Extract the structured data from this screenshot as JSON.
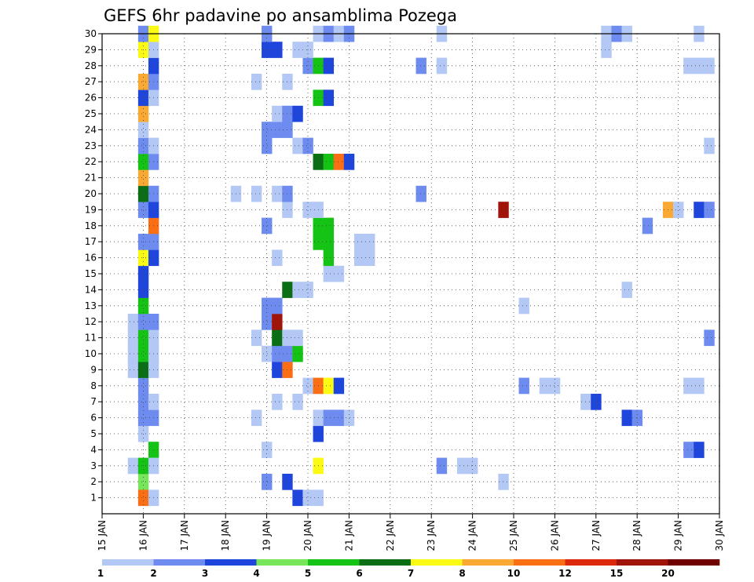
{
  "chart_data": {
    "type": "heatmap",
    "title": "GEFS 6hr padavine po ansamblima Pozega",
    "xlabel": "",
    "ylabel": "",
    "x_tick_labels": [
      "15 JAN",
      "16 JAN",
      "17 JAN",
      "18 JAN",
      "19 JAN",
      "20 JAN",
      "21 JAN",
      "22 JAN",
      "23 JAN",
      "24 JAN",
      "25 JAN",
      "26 JAN",
      "27 JAN",
      "28 JAN",
      "29 JAN",
      "30 JAN"
    ],
    "x_range": [
      "15 JAN",
      "30 JAN"
    ],
    "x_step_hours": 6,
    "y_range": [
      0,
      30
    ],
    "y_tick_labels": [
      1,
      2,
      3,
      4,
      5,
      6,
      7,
      8,
      9,
      10,
      11,
      12,
      13,
      14,
      15,
      16,
      17,
      18,
      19,
      20,
      21,
      22,
      23,
      24,
      25,
      26,
      27,
      28,
      29,
      30
    ],
    "grid": true,
    "color_levels": [
      1,
      2,
      3,
      4,
      5,
      6,
      7,
      8,
      10,
      12,
      15,
      20
    ],
    "color_bins": [
      "#b4c8f5",
      "#6e8cf0",
      "#1e46dc",
      "#78e65a",
      "#14c314",
      "#0a6e14",
      "#fafa14",
      "#faaa32",
      "#fa6e14",
      "#dc280a",
      "#a0140a",
      "#6e0000"
    ],
    "cells": [
      [
        16.0,
        2,
        4
      ],
      [
        16.0,
        1,
        10
      ],
      [
        16.25,
        1,
        1
      ],
      [
        16.25,
        4,
        5
      ],
      [
        15.75,
        3,
        1
      ],
      [
        16.0,
        3,
        5
      ],
      [
        16.25,
        3,
        1
      ],
      [
        16.0,
        5,
        1
      ],
      [
        16.0,
        6,
        2
      ],
      [
        16.25,
        6,
        2
      ],
      [
        16.0,
        7,
        2
      ],
      [
        16.25,
        7,
        1
      ],
      [
        16.0,
        8,
        2
      ],
      [
        15.75,
        9,
        1
      ],
      [
        16.0,
        9,
        6
      ],
      [
        16.25,
        9,
        1
      ],
      [
        15.75,
        10,
        1
      ],
      [
        16.0,
        10,
        5
      ],
      [
        16.25,
        10,
        1
      ],
      [
        15.75,
        11,
        1
      ],
      [
        16.0,
        11,
        5
      ],
      [
        16.25,
        11,
        1
      ],
      [
        15.75,
        12,
        1
      ],
      [
        16.0,
        12,
        2
      ],
      [
        16.25,
        12,
        2
      ],
      [
        16.0,
        13,
        5
      ],
      [
        16.0,
        14,
        3
      ],
      [
        16.0,
        15,
        3
      ],
      [
        16.0,
        16,
        7
      ],
      [
        16.25,
        16,
        3
      ],
      [
        16.0,
        17,
        2
      ],
      [
        16.25,
        17,
        2
      ],
      [
        16.25,
        18,
        10
      ],
      [
        16.0,
        19,
        2
      ],
      [
        16.25,
        19,
        3
      ],
      [
        16.0,
        20,
        6
      ],
      [
        16.25,
        20,
        2
      ],
      [
        16.0,
        21,
        8
      ],
      [
        16.0,
        22,
        5
      ],
      [
        16.25,
        22,
        2
      ],
      [
        16.0,
        23,
        2
      ],
      [
        16.25,
        23,
        1
      ],
      [
        16.0,
        24,
        1
      ],
      [
        16.0,
        25,
        8
      ],
      [
        16.0,
        26,
        3
      ],
      [
        16.25,
        26,
        1
      ],
      [
        16.0,
        27,
        8
      ],
      [
        16.25,
        27,
        2
      ],
      [
        16.25,
        28,
        3
      ],
      [
        16.0,
        29,
        7
      ],
      [
        16.25,
        29,
        1
      ],
      [
        16.0,
        30,
        2
      ],
      [
        16.25,
        30,
        7
      ],
      [
        19.75,
        1,
        3
      ],
      [
        20.0,
        1,
        1
      ],
      [
        20.25,
        1,
        1
      ],
      [
        19.0,
        2,
        2
      ],
      [
        19.5,
        2,
        3
      ],
      [
        20.25,
        3,
        7
      ],
      [
        19.0,
        4,
        1
      ],
      [
        20.25,
        5,
        3
      ],
      [
        18.75,
        6,
        1
      ],
      [
        20.25,
        6,
        1
      ],
      [
        20.5,
        6,
        2
      ],
      [
        20.75,
        6,
        2
      ],
      [
        21.0,
        6,
        1
      ],
      [
        19.25,
        7,
        1
      ],
      [
        19.75,
        7,
        1
      ],
      [
        20.0,
        8,
        1
      ],
      [
        20.25,
        8,
        10
      ],
      [
        20.5,
        8,
        7
      ],
      [
        20.75,
        8,
        3
      ],
      [
        19.25,
        9,
        3
      ],
      [
        19.5,
        9,
        10
      ],
      [
        19.0,
        10,
        1
      ],
      [
        19.25,
        10,
        2
      ],
      [
        19.5,
        10,
        2
      ],
      [
        19.75,
        10,
        5
      ],
      [
        18.75,
        11,
        1
      ],
      [
        19.25,
        11,
        6
      ],
      [
        19.5,
        11,
        1
      ],
      [
        19.75,
        11,
        1
      ],
      [
        19.0,
        12,
        2
      ],
      [
        19.25,
        12,
        15
      ],
      [
        19.0,
        13,
        2
      ],
      [
        19.25,
        13,
        2
      ],
      [
        19.5,
        14,
        6
      ],
      [
        19.75,
        14,
        1
      ],
      [
        20.0,
        14,
        1
      ],
      [
        20.5,
        15,
        1
      ],
      [
        20.75,
        15,
        1
      ],
      [
        19.25,
        16,
        1
      ],
      [
        20.5,
        16,
        5
      ],
      [
        21.25,
        16,
        1
      ],
      [
        21.5,
        16,
        1
      ],
      [
        20.25,
        17,
        5
      ],
      [
        20.5,
        17,
        5
      ],
      [
        21.25,
        17,
        1
      ],
      [
        21.5,
        17,
        1
      ],
      [
        19.0,
        18,
        2
      ],
      [
        20.25,
        18,
        5
      ],
      [
        20.5,
        18,
        5
      ],
      [
        19.5,
        19,
        1
      ],
      [
        20.0,
        19,
        1
      ],
      [
        20.25,
        19,
        1
      ],
      [
        18.25,
        20,
        1
      ],
      [
        18.75,
        20,
        1
      ],
      [
        19.25,
        20,
        1
      ],
      [
        19.5,
        20,
        2
      ],
      [
        20.25,
        22,
        6
      ],
      [
        20.5,
        22,
        5
      ],
      [
        20.75,
        22,
        10
      ],
      [
        21.0,
        22,
        3
      ],
      [
        19.0,
        23,
        2
      ],
      [
        19.75,
        23,
        1
      ],
      [
        20.0,
        23,
        2
      ],
      [
        19.0,
        24,
        2
      ],
      [
        19.25,
        24,
        2
      ],
      [
        19.5,
        24,
        2
      ],
      [
        19.25,
        25,
        1
      ],
      [
        19.5,
        25,
        2
      ],
      [
        19.75,
        25,
        3
      ],
      [
        20.25,
        26,
        5
      ],
      [
        20.5,
        26,
        3
      ],
      [
        18.75,
        27,
        1
      ],
      [
        19.5,
        27,
        1
      ],
      [
        20.0,
        28,
        2
      ],
      [
        20.25,
        28,
        5
      ],
      [
        20.5,
        28,
        3
      ],
      [
        19.0,
        29,
        3
      ],
      [
        19.25,
        29,
        3
      ],
      [
        19.75,
        29,
        1
      ],
      [
        20.0,
        29,
        1
      ],
      [
        19.0,
        30,
        2
      ],
      [
        20.25,
        30,
        1
      ],
      [
        20.5,
        30,
        2
      ],
      [
        20.75,
        30,
        1
      ],
      [
        21.0,
        30,
        2
      ],
      [
        22.75,
        20,
        2
      ],
      [
        22.75,
        28,
        2
      ],
      [
        23.25,
        28,
        1
      ],
      [
        23.25,
        30,
        1
      ],
      [
        23.25,
        3,
        2
      ],
      [
        23.75,
        3,
        1
      ],
      [
        24.0,
        3,
        1
      ],
      [
        24.75,
        2,
        1
      ],
      [
        24.75,
        19,
        15
      ],
      [
        25.25,
        8,
        2
      ],
      [
        25.25,
        13,
        1
      ],
      [
        25.75,
        8,
        1
      ],
      [
        26.0,
        8,
        1
      ],
      [
        26.75,
        7,
        1
      ],
      [
        27.0,
        7,
        3
      ],
      [
        27.25,
        30,
        1
      ],
      [
        27.25,
        29,
        1
      ],
      [
        27.5,
        30,
        2
      ],
      [
        27.75,
        30,
        1
      ],
      [
        27.75,
        6,
        3
      ],
      [
        28.0,
        6,
        2
      ],
      [
        27.75,
        14,
        1
      ],
      [
        28.25,
        18,
        2
      ],
      [
        28.75,
        19,
        8
      ],
      [
        29.0,
        19,
        1
      ],
      [
        29.25,
        4,
        2
      ],
      [
        29.5,
        4,
        3
      ],
      [
        29.5,
        19,
        3
      ],
      [
        29.75,
        19,
        2
      ],
      [
        29.25,
        8,
        1
      ],
      [
        29.5,
        8,
        1
      ],
      [
        29.25,
        28,
        1
      ],
      [
        29.5,
        28,
        1
      ],
      [
        29.75,
        28,
        1
      ],
      [
        29.75,
        23,
        1
      ],
      [
        29.5,
        30,
        1
      ],
      [
        29.75,
        11,
        2
      ]
    ]
  }
}
